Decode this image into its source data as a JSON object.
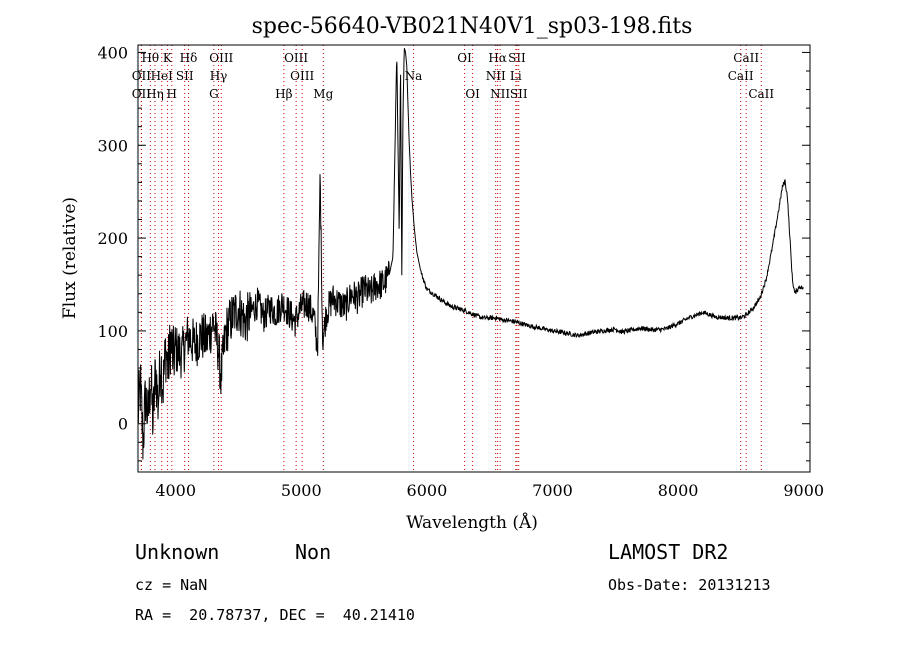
{
  "chart_data": {
    "type": "line",
    "title": "spec-56640-VB021N40V1_sp03-198.fits",
    "xlabel": "Wavelength (Å)",
    "ylabel": "Flux (relative)",
    "xlim": [
      3700,
      9050
    ],
    "ylim": [
      -52,
      408
    ],
    "xticks": [
      4000,
      5000,
      6000,
      7000,
      8000,
      9000
    ],
    "yticks": [
      0,
      100,
      200,
      300,
      400
    ],
    "grid": false,
    "line_colors": {
      "spectrum": "#000000",
      "markers": "#cc0000"
    },
    "series": [
      {
        "x": [
          3700,
          3720,
          3740,
          3760,
          3780,
          3800,
          3820,
          3840,
          3860,
          3880,
          3900,
          3920,
          3940,
          3960,
          3980,
          4000,
          4050,
          4100,
          4150,
          4200,
          4250,
          4300,
          4340,
          4360,
          4400,
          4450,
          4500,
          4550,
          4600,
          4650,
          4700,
          4750,
          4800,
          4850,
          4900,
          4950,
          5000,
          5050,
          5100,
          5130,
          5150,
          5170,
          5200,
          5250,
          5300,
          5350,
          5400,
          5450,
          5500,
          5550,
          5600,
          5650,
          5700,
          5730,
          5760,
          5780,
          5790,
          5800,
          5810,
          5820,
          5830,
          5840,
          5850,
          5860,
          5870,
          5880,
          5900,
          5920,
          5950,
          5980,
          6000,
          6050,
          6100,
          6150,
          6200,
          6250,
          6300,
          6350,
          6400,
          6450,
          6500,
          6550,
          6600,
          6700,
          6800,
          6900,
          7000,
          7100,
          7200,
          7300,
          7400,
          7500,
          7550,
          7600,
          7700,
          7800,
          7900,
          8000,
          8100,
          8200,
          8300,
          8400,
          8500,
          8550,
          8600,
          8650,
          8700,
          8750,
          8800,
          8830,
          8850,
          8870,
          8890,
          8910,
          8930,
          8950,
          8970,
          9000
        ],
        "y": [
          10,
          40,
          -20,
          30,
          5,
          50,
          0,
          60,
          20,
          70,
          40,
          80,
          60,
          90,
          70,
          80,
          75,
          95,
          85,
          95,
          90,
          110,
          80,
          50,
          100,
          115,
          125,
          110,
          120,
          130,
          115,
          125,
          120,
          130,
          120,
          110,
          125,
          130,
          115,
          80,
          270,
          90,
          120,
          135,
          130,
          125,
          140,
          135,
          145,
          140,
          150,
          150,
          160,
          180,
          400,
          200,
          400,
          160,
          340,
          405,
          400,
          385,
          340,
          300,
          270,
          245,
          210,
          185,
          165,
          152,
          145,
          140,
          135,
          130,
          126,
          124,
          122,
          119,
          116,
          114,
          114,
          114,
          112,
          110,
          106,
          103,
          100,
          98,
          95,
          98,
          100,
          102,
          99,
          100,
          103,
          101,
          102,
          108,
          115,
          120,
          115,
          114,
          114,
          118,
          125,
          135,
          155,
          190,
          230,
          255,
          262,
          245,
          200,
          155,
          140,
          145,
          148,
          145
        ]
      }
    ],
    "line_markers": [
      {
        "label": "Hθ",
        "x": 3798,
        "row": 1
      },
      {
        "label": "K",
        "x": 3934,
        "row": 1
      },
      {
        "label": "Hδ",
        "x": 4102,
        "row": 1
      },
      {
        "label": "OIII",
        "x": 4363,
        "row": 1
      },
      {
        "label": "OIII",
        "x": 4959,
        "row": 1
      },
      {
        "label": "OI",
        "x": 6300,
        "row": 1
      },
      {
        "label": "Hα",
        "x": 6563,
        "row": 1
      },
      {
        "label": "SII",
        "x": 6717,
        "row": 1
      },
      {
        "label": "CaII",
        "x": 8542,
        "row": 1
      },
      {
        "label": "OII",
        "x": 3727,
        "row": 2
      },
      {
        "label": "HeI",
        "x": 3889,
        "row": 2
      },
      {
        "label": "SII",
        "x": 4072,
        "row": 2
      },
      {
        "label": "Hγ",
        "x": 4341,
        "row": 2
      },
      {
        "label": "OIII",
        "x": 5007,
        "row": 2
      },
      {
        "label": "Na",
        "x": 5893,
        "row": 2
      },
      {
        "label": "NII",
        "x": 6548,
        "row": 2
      },
      {
        "label": "Li",
        "x": 6708,
        "row": 2
      },
      {
        "label": "CaII",
        "x": 8498,
        "row": 2
      },
      {
        "label": "OII",
        "x": 3727,
        "row": 3
      },
      {
        "label": "Hη",
        "x": 3835,
        "row": 3
      },
      {
        "label": "H",
        "x": 3969,
        "row": 3
      },
      {
        "label": "G",
        "x": 4304,
        "row": 3
      },
      {
        "label": "Hβ",
        "x": 4861,
        "row": 3
      },
      {
        "label": "Mg",
        "x": 5175,
        "row": 3
      },
      {
        "label": "OI",
        "x": 6364,
        "row": 3
      },
      {
        "label": "NII",
        "x": 6583,
        "row": 3
      },
      {
        "label": "SII",
        "x": 6731,
        "row": 3
      },
      {
        "label": "CaII",
        "x": 8662,
        "row": 3
      }
    ]
  },
  "info": {
    "class": "Unknown",
    "subclass": "Non",
    "survey": "LAMOST DR2",
    "cz": "cz = NaN",
    "obs_date": "Obs-Date: 20131213",
    "coords": "RA =  20.78737, DEC =  40.21410"
  }
}
